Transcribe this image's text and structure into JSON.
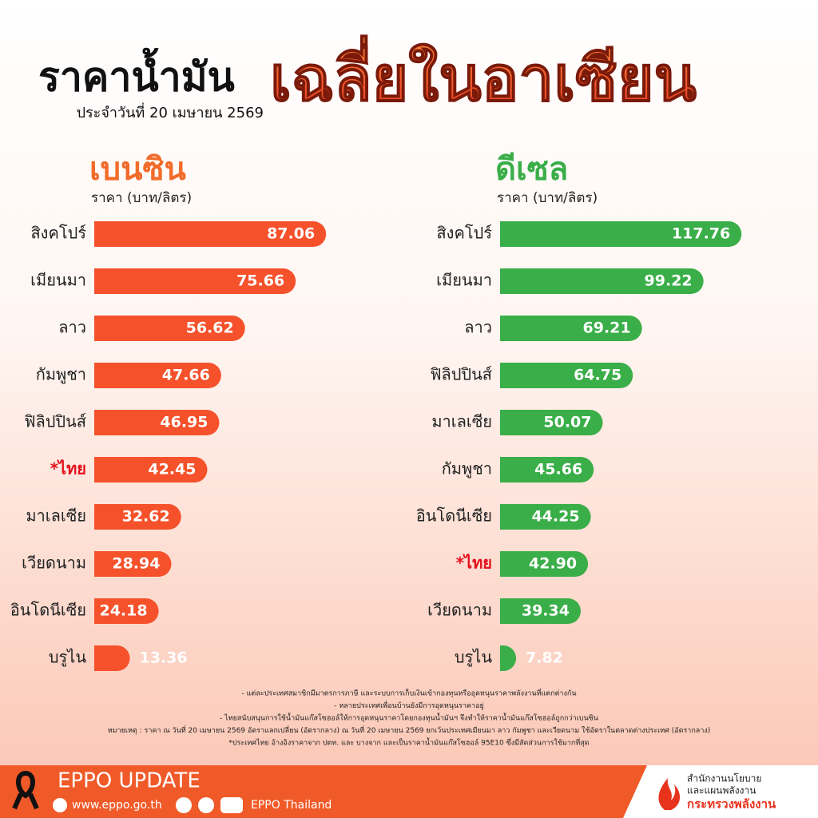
{
  "header": {
    "title": "ราคาน้ำมัน",
    "title_highlight": "เฉลี่ยในอาเซียน",
    "subtitle": "ประจำวันที่ 20 เมษายน 2569"
  },
  "chart_data": [
    {
      "type": "hbar",
      "title": "เบนซิน",
      "subtitle": "ราคา (บาท/ลิตร)",
      "title_color": "#f26b2a",
      "color": "#f5512b",
      "categories": [
        "สิงคโปร์",
        "เมียนมา",
        "ลาว",
        "กัมพูชา",
        "ฟิลิปปินส์",
        "*ไทย",
        "มาเลเซีย",
        "เวียดนาม",
        "อินโดนีเซีย",
        "บรูไน"
      ],
      "values": [
        87.06,
        75.66,
        56.62,
        47.66,
        46.95,
        42.45,
        32.62,
        28.94,
        24.18,
        13.36
      ],
      "value_labels": [
        "87.06",
        "75.66",
        "56.62",
        "47.66",
        "46.95",
        "42.45",
        "32.62",
        "28.94",
        "24.18",
        "13.36"
      ],
      "label_colors": [
        "#222",
        "#222",
        "#222",
        "#222",
        "#222",
        "#e3111b",
        "#222",
        "#222",
        "#222",
        "#222"
      ],
      "xlim": [
        0,
        90
      ]
    },
    {
      "type": "hbar",
      "title": "ดีเซล",
      "subtitle": "ราคา (บาท/ลิตร)",
      "title_color": "#3aae48",
      "color": "#3aae48",
      "categories": [
        "สิงคโปร์",
        "เมียนมา",
        "ลาว",
        "ฟิลิปปินส์",
        "มาเลเซีย",
        "กัมพูชา",
        "อินโดนีเซีย",
        "*ไทย",
        "เวียดนาม",
        "บรูไน"
      ],
      "values": [
        117.76,
        99.22,
        69.21,
        64.75,
        50.07,
        45.66,
        44.25,
        42.9,
        39.34,
        7.82
      ],
      "value_labels": [
        "117.76",
        "99.22",
        "69.21",
        "64.75",
        "50.07",
        "45.66",
        "44.25",
        "42.90",
        "39.34",
        "7.82"
      ],
      "label_colors": [
        "#222",
        "#222",
        "#222",
        "#222",
        "#222",
        "#222",
        "#222",
        "#e3111b",
        "#222",
        "#222"
      ],
      "xlim": [
        0,
        120
      ]
    }
  ],
  "notes": [
    "- แต่ละประเทศสมาชิกมีมาตรการภาษี และระบบการเก็บเงินเข้ากองทุนหรืออุดหนุนราคาพลังงานที่แตกต่างกัน",
    "- หลายประเทศเพื่อนบ้านยังมีการอุดหนุนราคาอยู่",
    "- ไทยสนับสนุนการใช้น้ำมันแก๊สโซฮอล์ให้การอุดหนุนราคาโดยกองทุนน้ำมันฯ จึงทำให้ราคาน้ำมันแก๊สโซฮอล์ถูกกว่าเบนซิน",
    "หมายเหตุ : ราคา ณ วันที่ 20 เมษายน 2569 อัตราแลกเปลี่ยน (อัตรากลาง) ณ วันที่ 20 เมษายน 2569 ยกเว้นประเทศเมียนมา ลาว กัมพูชา และเวียดนาม ใช้อัตราในตลาดต่างประเทศ (อัตรากลาง)",
    "*ประเทศไทย อ้างอิงราคาจาก ปตท. และ บางจาก และเป็นราคาน้ำมันแก๊สโซฮอล์ 95E10 ซึ่งมีสัดส่วนการใช้มากที่สุด"
  ],
  "footer": {
    "brand": "EPPO UPDATE",
    "website": "www.eppo.go.th",
    "social": "EPPO Thailand",
    "org_line1": "สำนักงานนโยบาย",
    "org_line2": "และแผนพลังงาน",
    "ministry": "กระทรวงพลังงาน"
  }
}
